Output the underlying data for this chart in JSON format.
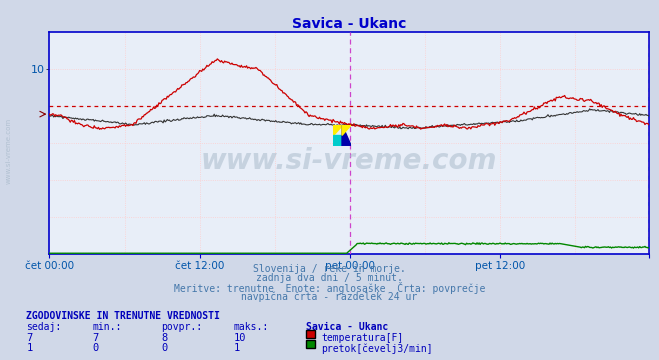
{
  "title": "Savica - Ukanc",
  "title_color": "#0000cc",
  "bg_color": "#d0d8e8",
  "plot_bg_color": "#e8eef8",
  "grid_color": "#ffaaaa",
  "grid_v_color": "#ddaadd",
  "xlabel_color": "#0055aa",
  "text_color": "#4477aa",
  "watermark": "www.si-vreme.com",
  "n_points": 576,
  "xlim": [
    0,
    575
  ],
  "ylim": [
    0,
    12
  ],
  "ytick_val": 10,
  "xtick_positions": [
    0,
    144,
    288,
    432,
    575
  ],
  "xtick_labels": [
    "čet 00:00",
    "čet 12:00",
    "pet 00:00",
    "pet 12:00",
    ""
  ],
  "avg_value": 8.0,
  "avg_color": "#cc0000",
  "vline_positions": [
    288,
    575
  ],
  "vline_color": "#cc44cc",
  "temp_color": "#cc0000",
  "black_color": "#333333",
  "flow_color": "#008800",
  "flow_dot_color": "#ffaaaa",
  "axis_color": "#0000cc",
  "bottom_text1": "Slovenija / reke in morje.",
  "bottom_text2": "zadnja dva dni / 5 minut.",
  "bottom_text3": "Meritve: trenutne  Enote: anglosaške  Črta: povprečje",
  "bottom_text4": "navpična črta - razdelek 24 ur",
  "table_header": "ZGODOVINSKE IN TRENUTNE VREDNOSTI",
  "col_headers": [
    "sedaj:",
    "min.:",
    "povpr.:",
    "maks.:",
    "Savica - Ukanc"
  ],
  "row1": [
    "7",
    "7",
    "8",
    "10"
  ],
  "row2": [
    "1",
    "0",
    "0",
    "1"
  ],
  "legend1": "temperatura[F]",
  "legend2": "pretok[čevelj3/min]",
  "legend1_color": "#cc0000",
  "legend2_color": "#008800",
  "side_text": "www.si-vreme.com"
}
